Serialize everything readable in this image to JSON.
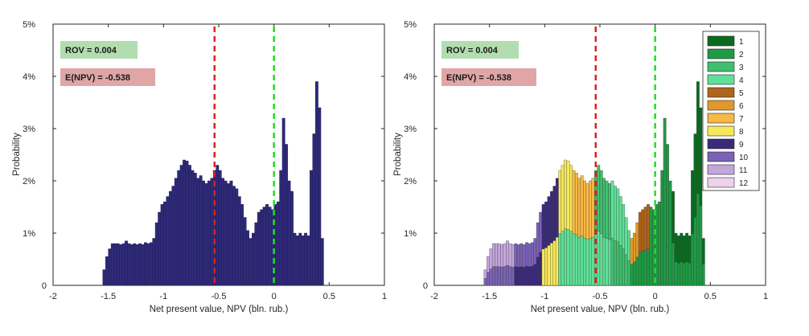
{
  "chart_data": [
    {
      "type": "histogram",
      "title": "",
      "xlabel": "Net present value, NPV (bln. rub.)",
      "ylabel": "Probability",
      "xlim": [
        -2,
        1
      ],
      "ylim": [
        0,
        5
      ],
      "x_ticks": [
        "-2",
        "-1.5",
        "-1",
        "-0.5",
        "0",
        "0.5",
        "1"
      ],
      "y_ticks": [
        "0",
        "1%",
        "2%",
        "3%",
        "4%",
        "5%"
      ],
      "bin_width": 0.025,
      "bin_start": -1.55,
      "bar_color": "#2e2a78",
      "values": [
        0.3,
        0.55,
        0.7,
        0.8,
        0.8,
        0.8,
        0.78,
        0.8,
        0.85,
        0.8,
        0.78,
        0.8,
        0.78,
        0.8,
        0.78,
        0.82,
        0.8,
        0.82,
        0.9,
        1.2,
        1.4,
        1.55,
        1.6,
        1.7,
        1.8,
        1.9,
        2.05,
        2.2,
        2.3,
        2.4,
        2.38,
        2.3,
        2.2,
        2.15,
        2.05,
        2.1,
        2.0,
        1.95,
        2.0,
        2.05,
        2.2,
        2.3,
        2.2,
        2.05,
        2.0,
        1.95,
        2.0,
        1.9,
        1.85,
        1.7,
        1.55,
        1.3,
        1.05,
        0.9,
        1.0,
        1.2,
        1.4,
        1.45,
        1.5,
        1.55,
        1.5,
        1.45,
        1.55,
        1.6,
        2.2,
        3.2,
        2.7,
        2.0,
        1.8,
        1.0,
        0.95,
        1.0,
        0.95,
        1.0,
        0.95,
        2.2,
        2.9,
        3.9,
        3.4,
        0.9
      ],
      "reference_lines": [
        {
          "name": "E(NPV)",
          "x": -0.538,
          "color": "#e02020"
        },
        {
          "name": "ROV",
          "x": 0.0,
          "color": "#22dd22"
        }
      ],
      "annotations": [
        {
          "text": "ROV = 0.004",
          "color": "#b2ddb0"
        },
        {
          "text": "E(NPV) = -0.538",
          "color": "#e0a6a6"
        }
      ]
    },
    {
      "type": "stacked-histogram",
      "title": "",
      "xlabel": "Net present value, NPV (bln. rub.)",
      "ylabel": "Probability",
      "xlim": [
        -2,
        1
      ],
      "ylim": [
        0,
        5
      ],
      "x_ticks": [
        "-2",
        "-1.5",
        "-1",
        "-0.5",
        "0",
        "0.5",
        "1"
      ],
      "y_ticks": [
        "0",
        "1%",
        "2%",
        "3%",
        "4%",
        "5%"
      ],
      "bin_width": 0.025,
      "bin_start": -1.55,
      "legend": {
        "placement": "top-right",
        "entries": [
          "1",
          "2",
          "3",
          "4",
          "5",
          "6",
          "7",
          "8",
          "9",
          "10",
          "11",
          "12"
        ],
        "colors": [
          "#0a6b1f",
          "#1f9a45",
          "#3fbf6e",
          "#5fe098",
          "#b0651c",
          "#e0982a",
          "#f7b845",
          "#f7e85a",
          "#3a2a7a",
          "#7a62b6",
          "#c4a6de",
          "#ecd2ec"
        ]
      },
      "reference_lines": [
        {
          "name": "E(NPV)",
          "x": -0.538,
          "color": "#e02020"
        },
        {
          "name": "ROV",
          "x": 0.0,
          "color": "#22dd22"
        }
      ],
      "annotations": [
        {
          "text": "ROV = 0.004",
          "color": "#b2ddb0"
        },
        {
          "text": "E(NPV) = -0.538",
          "color": "#e0a6a6"
        }
      ]
    }
  ]
}
